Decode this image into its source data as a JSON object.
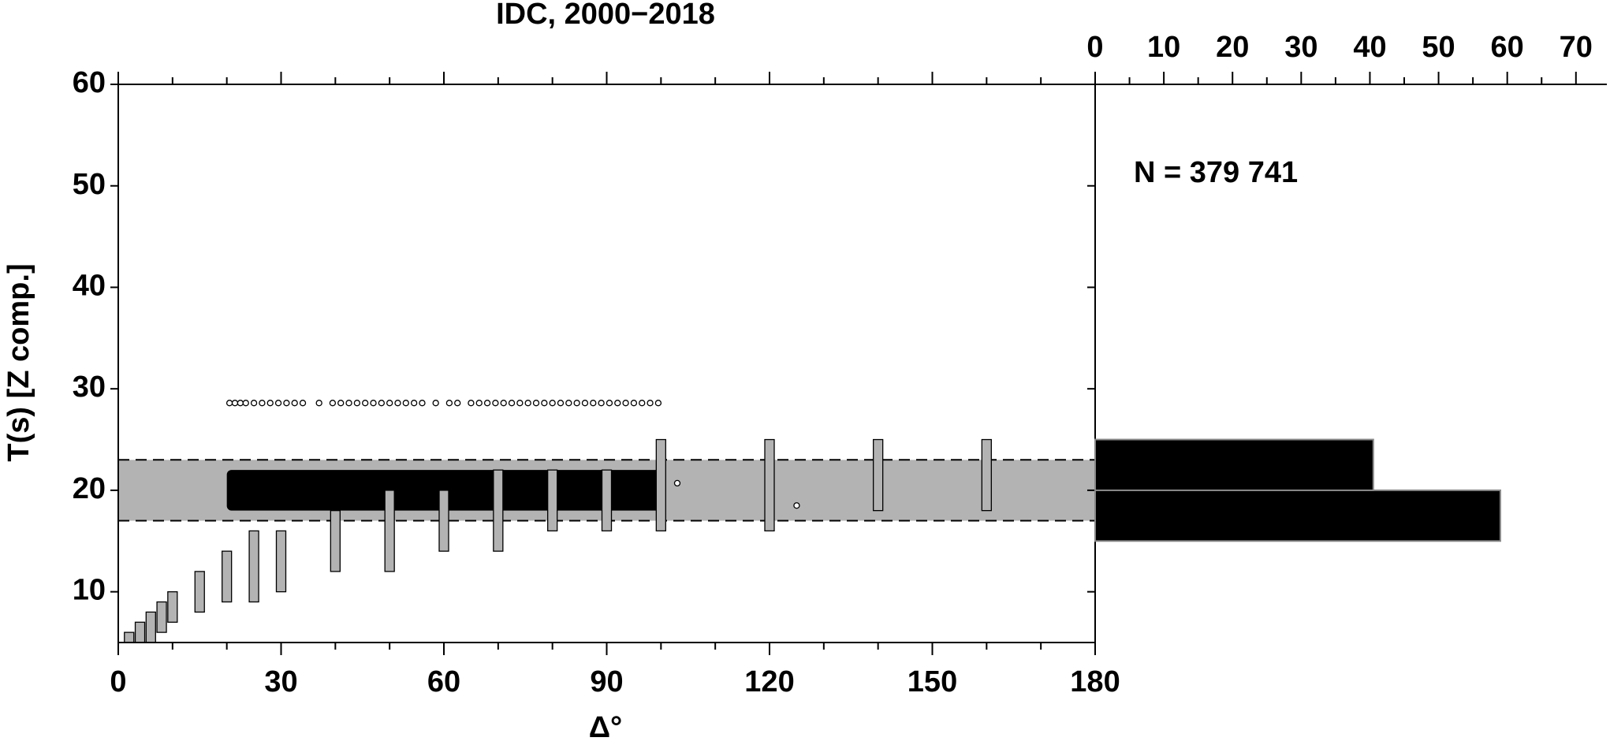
{
  "chart_data": [
    {
      "type": "range",
      "title": "IDC, 2000−2018",
      "x_label": "Δ°",
      "y_label": "T(s) [Z comp.]",
      "xlim": [
        0,
        180
      ],
      "xticks": [
        0,
        30,
        60,
        90,
        120,
        150,
        180
      ],
      "xminorticks": [
        10,
        20,
        40,
        50,
        70,
        80,
        100,
        110,
        130,
        140,
        160,
        170
      ],
      "ylim": [
        5,
        60
      ],
      "yticks": [
        10,
        20,
        30,
        40,
        50,
        60
      ],
      "band": [
        17,
        23
      ],
      "band_color": "#b3b3b3",
      "dense_region": {
        "x": [
          20,
          100
        ],
        "y": [
          18,
          22
        ],
        "color": "#000000"
      },
      "ranges": {
        "color": "#b3b3b3",
        "x": [
          2,
          4,
          6,
          8,
          10,
          15,
          20,
          25,
          30,
          40,
          50,
          60,
          70,
          80,
          90,
          100,
          120,
          140,
          160
        ],
        "low": [
          5,
          5,
          5,
          6,
          7,
          8,
          9,
          9,
          10,
          12,
          12,
          14,
          14,
          16,
          16,
          16,
          16,
          18,
          18
        ],
        "high": [
          6,
          7,
          8,
          9,
          10,
          12,
          14,
          16,
          16,
          18,
          20,
          20,
          22,
          22,
          22,
          25,
          25,
          25,
          25
        ]
      },
      "points": {
        "x": [
          20.5,
          21.5,
          22.5,
          23.5,
          25,
          26.5,
          28,
          29.5,
          31,
          32.5,
          34,
          37,
          39.5,
          41,
          42.5,
          44,
          45.5,
          47,
          48.5,
          50,
          51.5,
          53,
          54.5,
          56,
          58.5,
          61,
          62.5,
          65,
          66.5,
          68,
          69.5,
          71,
          72.5,
          74,
          75.5,
          77,
          78.5,
          80,
          81.5,
          83,
          84.5,
          86,
          87.5,
          89,
          90.5,
          92,
          93.5,
          95,
          96.5,
          98,
          99.5,
          103,
          125
        ],
        "y": [
          28.6,
          28.6,
          28.6,
          28.6,
          28.6,
          28.6,
          28.6,
          28.6,
          28.6,
          28.6,
          28.6,
          28.6,
          28.6,
          28.6,
          28.6,
          28.6,
          28.6,
          28.6,
          28.6,
          28.6,
          28.6,
          28.6,
          28.6,
          28.6,
          28.6,
          28.6,
          28.6,
          28.6,
          28.6,
          28.6,
          28.6,
          28.6,
          28.6,
          28.6,
          28.6,
          28.6,
          28.6,
          28.6,
          28.6,
          28.6,
          28.6,
          28.6,
          28.6,
          28.6,
          28.6,
          28.6,
          28.6,
          28.6,
          28.6,
          28.6,
          28.6,
          20.7,
          18.5
        ]
      }
    },
    {
      "type": "hist",
      "annotation": "N = 379 741",
      "xlim": [
        0,
        74.5
      ],
      "xticks": [
        0,
        10,
        20,
        30,
        40,
        50,
        60,
        70
      ],
      "xminorticks": [
        5,
        15,
        25,
        35,
        45,
        55,
        65
      ],
      "bins": [
        15,
        20,
        25
      ],
      "counts": [
        59,
        40.5
      ],
      "color": "#000000"
    }
  ]
}
